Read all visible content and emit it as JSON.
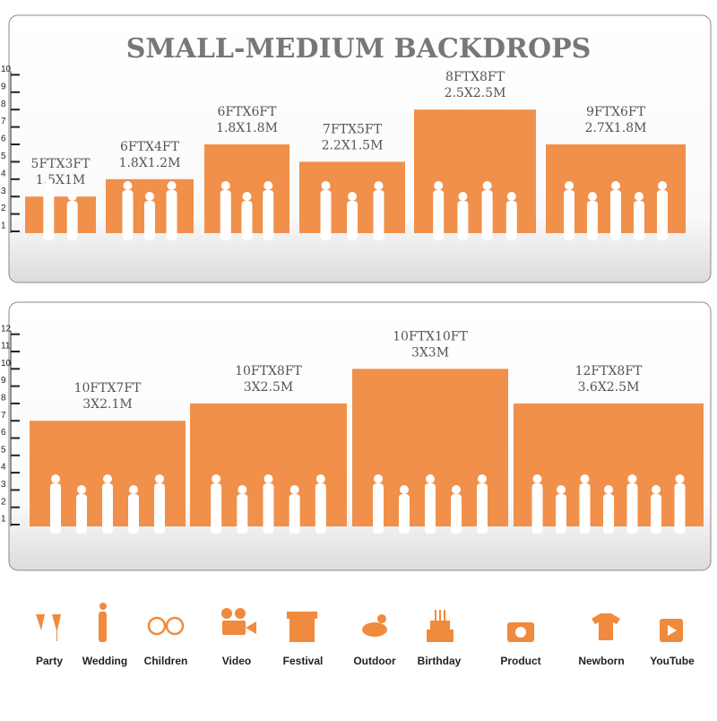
{
  "title": "SMALL-MEDIUM BACKDROPS",
  "panels": [
    {
      "ruler_ticks": [
        1,
        2,
        3,
        4,
        5,
        6,
        7,
        8,
        9,
        10
      ],
      "backdrops": [
        {
          "label_ft": "5FTX3FT",
          "label_m": "1.5X1M",
          "height": 3
        },
        {
          "label_ft": "6FTX4FT",
          "label_m": "1.8X1.2M",
          "height": 4
        },
        {
          "label_ft": "6FTX6FT",
          "label_m": "1.8X1.8M",
          "height": 6
        },
        {
          "label_ft": "7FTX5FT",
          "label_m": "2.2X1.5M",
          "height": 5
        },
        {
          "label_ft": "8FTX8FT",
          "label_m": "2.5X2.5M",
          "height": 8
        },
        {
          "label_ft": "9FTX6FT",
          "label_m": "2.7X1.8M",
          "height": 6
        }
      ]
    },
    {
      "ruler_ticks": [
        1,
        2,
        3,
        4,
        5,
        6,
        7,
        8,
        9,
        10,
        11,
        12
      ],
      "backdrops": [
        {
          "label_ft": "10FTX7FT",
          "label_m": "3X2.1M",
          "height": 7
        },
        {
          "label_ft": "10FTX8FT",
          "label_m": "3X2.5M",
          "height": 8
        },
        {
          "label_ft": "10FTX10FT",
          "label_m": "3X3M",
          "height": 10
        },
        {
          "label_ft": "12FTX8FT",
          "label_m": "3.6X2.5M",
          "height": 8
        }
      ]
    }
  ],
  "uses": [
    "Party",
    "Wedding",
    "Children",
    "Video",
    "Festival",
    "Outdoor",
    "Birthday",
    "Product",
    "Newborn",
    "YouTube"
  ]
}
